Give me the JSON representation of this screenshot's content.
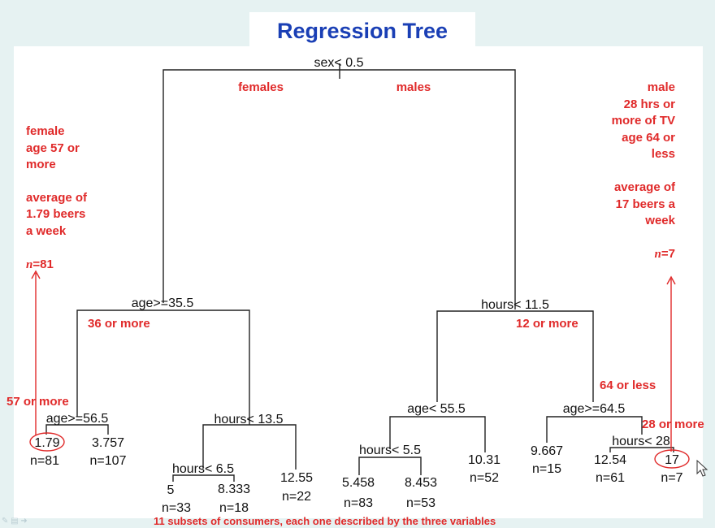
{
  "title": "Regression Tree",
  "footer": "11 subsets of consumers, each one described by the three variables",
  "colors": {
    "title": "#1a3fb5",
    "annotation": "#e02a2a",
    "tree": "#111111"
  },
  "splits": {
    "root": "sex< 0.5",
    "left": "age>=35.5",
    "right": "hours< 11.5",
    "ll": "age>=56.5",
    "lr": "hours< 13.5",
    "lrl": "hours< 6.5",
    "rl": "age< 55.5",
    "rll": "hours< 5.5",
    "rr": "age>=64.5",
    "rrr": "hours< 28"
  },
  "branch_labels": {
    "females": "females",
    "males": "males",
    "age36": "36 or more",
    "hours12": "12 or more",
    "age57": "57 or more",
    "age64": "64 or less",
    "hours28": "28 or more"
  },
  "leaves": [
    {
      "value": "1.79",
      "n": "n=81"
    },
    {
      "value": "3.757",
      "n": "n=107"
    },
    {
      "value": "5",
      "n": "n=33"
    },
    {
      "value": "8.333",
      "n": "n=18"
    },
    {
      "value": "12.55",
      "n": "n=22"
    },
    {
      "value": "5.458",
      "n": "n=83"
    },
    {
      "value": "8.453",
      "n": "n=53"
    },
    {
      "value": "10.31",
      "n": "n=52"
    },
    {
      "value": "9.667",
      "n": "n=15"
    },
    {
      "value": "12.54",
      "n": "n=61"
    },
    {
      "value": "17",
      "n": "n=7"
    }
  ],
  "left_note": {
    "lines": [
      "female",
      "age 57 or",
      "more",
      "",
      "average of",
      "1.79 beers",
      "a week"
    ],
    "n_symbol": "n",
    "n_value": "=81"
  },
  "right_note": {
    "lines": [
      "male",
      "28 hrs or",
      "more of TV",
      "age 64 or",
      "less",
      "",
      "average of",
      "17 beers a",
      "week"
    ],
    "n_symbol": "n",
    "n_value": "=7"
  }
}
